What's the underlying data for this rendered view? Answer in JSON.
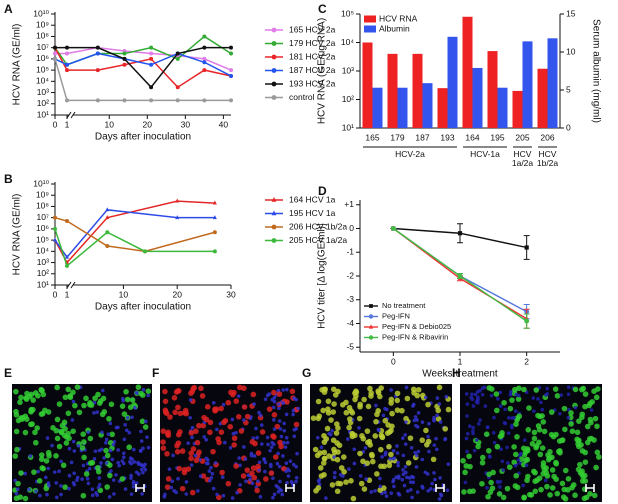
{
  "chart_data": [
    {
      "type": "line",
      "panel_label": "A",
      "y_label": "HCV RNA (GE/ml)",
      "x_label": "Days after inoculation",
      "log_y": true,
      "axis_break": true,
      "legend": "right",
      "xlim": [
        0,
        42
      ],
      "xticks": [
        0,
        1,
        10,
        20,
        30,
        40
      ],
      "ylim": [
        10,
        10000000000.0
      ],
      "yticks": [
        {
          "value": 10,
          "label": "10¹"
        },
        {
          "value": 100,
          "label": "10²"
        },
        {
          "value": 1000,
          "label": "10³"
        },
        {
          "value": 10000.0,
          "label": "10⁴"
        },
        {
          "value": 100000.0,
          "label": "10⁵"
        },
        {
          "value": 1000000.0,
          "label": "10⁶"
        },
        {
          "value": 10000000.0,
          "label": "10⁷"
        },
        {
          "value": 100000000.0,
          "label": "10⁸"
        },
        {
          "value": 1000000000.0,
          "label": "10⁹"
        },
        {
          "value": 10000000000.0,
          "label": "10¹⁰"
        }
      ],
      "x": [
        0,
        1,
        7,
        14,
        21,
        28,
        35,
        42
      ],
      "series": [
        {
          "name": "165 HCV 2a",
          "color": "#e07be8",
          "marker": "circle",
          "values": [
            3000000.0,
            3000000.0,
            10000000.0,
            5000000.0,
            3000000.0,
            2000000.0,
            1000000.0,
            100000.0
          ]
        },
        {
          "name": "179 HCV 2a",
          "color": "#33aa33",
          "marker": "circle",
          "values": [
            10000000.0,
            300000.0,
            3000000.0,
            3000000.0,
            10000000.0,
            1000000.0,
            100000000.0,
            3000000.0
          ]
        },
        {
          "name": "181 HCV 2a",
          "color": "#e8262a",
          "marker": "circle",
          "values": [
            10000000.0,
            100000.0,
            100000.0,
            300000.0,
            1000000.0,
            3000.0,
            100000.0,
            30000.0
          ]
        },
        {
          "name": "187 HCV 2a",
          "color": "#2255ee",
          "marker": "circle",
          "values": [
            1000000.0,
            300000.0,
            3000000.0,
            1000000.0,
            300000.0,
            3000000.0,
            500000.0,
            30000.0
          ]
        },
        {
          "name": "193 HCV 2a",
          "color": "#111111",
          "marker": "circle",
          "values": [
            10000000.0,
            10000000.0,
            10000000.0,
            1000000.0,
            3000.0,
            3000000.0,
            10000000.0,
            10000000.0
          ]
        },
        {
          "name": "control",
          "color": "#9a9a9a",
          "marker": "circle",
          "values": [
            1000000.0,
            200,
            200,
            200,
            200,
            200,
            200,
            200
          ]
        }
      ]
    },
    {
      "type": "line",
      "panel_label": "B",
      "y_label": "HCV RNA (GE/ml)",
      "x_label": "Days after inoculation",
      "log_y": true,
      "axis_break": true,
      "legend": "right",
      "xlim": [
        0,
        30
      ],
      "xticks": [
        0,
        1,
        10,
        20,
        30
      ],
      "ylim": [
        10,
        10000000000.0
      ],
      "yticks": [
        {
          "value": 10,
          "label": "10¹"
        },
        {
          "value": 100,
          "label": "10²"
        },
        {
          "value": 1000,
          "label": "10³"
        },
        {
          "value": 10000.0,
          "label": "10⁴"
        },
        {
          "value": 100000.0,
          "label": "10⁵"
        },
        {
          "value": 1000000.0,
          "label": "10⁶"
        },
        {
          "value": 10000000.0,
          "label": "10⁷"
        },
        {
          "value": 100000000.0,
          "label": "10⁸"
        },
        {
          "value": 1000000000.0,
          "label": "10⁹"
        },
        {
          "value": 10000000000.0,
          "label": "10¹⁰"
        }
      ],
      "series": [
        {
          "name": "164 HCV 1a",
          "color": "#e32626",
          "marker": "triangle",
          "x": [
            0,
            1,
            7,
            20,
            27
          ],
          "values": [
            100000.0,
            1000.0,
            10000000.0,
            300000000.0,
            200000000.0
          ]
        },
        {
          "name": "195 HCV 1a",
          "color": "#2e4be8",
          "marker": "triangle",
          "x": [
            0,
            1,
            7,
            20,
            27
          ],
          "values": [
            100000.0,
            3000.0,
            50000000.0,
            10000000.0,
            10000000.0
          ]
        },
        {
          "name": "206 HCV 1b/2a",
          "color": "#c06a1e",
          "marker": "circle",
          "x": [
            0,
            1,
            7,
            14,
            27
          ],
          "values": [
            10000000.0,
            5000000.0,
            30000.0,
            10000.0,
            500000.0
          ]
        },
        {
          "name": "205 HCV 1a/2a",
          "color": "#3cb83c",
          "marker": "circle",
          "x": [
            0,
            1,
            7,
            14,
            27
          ],
          "values": [
            1000000.0,
            500,
            500000.0,
            10000.0,
            10000.0
          ]
        }
      ]
    },
    {
      "type": "bar",
      "panel_label": "C",
      "y_label": "HCV RNA (GE/μg RNA)",
      "y2_label": "Serum albumin (mg/ml)",
      "log_y": true,
      "legend": "upper left",
      "ylim": [
        10,
        100000.0
      ],
      "yticks": [
        {
          "value": 10,
          "label": "10¹"
        },
        {
          "value": 100,
          "label": "10²"
        },
        {
          "value": 1000,
          "label": "10³"
        },
        {
          "value": 10000.0,
          "label": "10⁴"
        },
        {
          "value": 100000.0,
          "label": "10⁵"
        }
      ],
      "y2lim": [
        0,
        15
      ],
      "y2ticks": [
        0,
        5,
        10,
        15
      ],
      "groups": [
        {
          "name": "HCV-2a",
          "categories": [
            "165",
            "179",
            "187",
            "193"
          ]
        },
        {
          "name": "HCV-1a",
          "categories": [
            "164",
            "195"
          ]
        },
        {
          "name": "HCV 1a/2a",
          "categories": [
            "205"
          ]
        },
        {
          "name": "HCV 1b/2a",
          "categories": [
            "206"
          ]
        }
      ],
      "series": [
        {
          "name": "HCV RNA",
          "color": "#ee2222",
          "values": [
            10000.0,
            4000,
            4000,
            250,
            80000.0,
            5000,
            200,
            1200
          ]
        },
        {
          "name": "Albumin",
          "color": "#3355ee",
          "axis": "y2",
          "values": [
            5.3,
            5.3,
            5.9,
            12,
            7.9,
            5.3,
            11.4,
            11.8
          ]
        }
      ]
    },
    {
      "type": "errorline",
      "panel_label": "D",
      "y_label": "HCV titer [Δ log(GE/ml)]",
      "x_label": "Weeks treatment",
      "legend": "lower left",
      "xlim": [
        -0.5,
        2.5
      ],
      "xticks": [
        0,
        1,
        2
      ],
      "ylim": [
        -5.2,
        1.2
      ],
      "yticks": [
        {
          "value": 1,
          "label": "+1"
        },
        0,
        -1,
        -2,
        -3,
        -4,
        -5
      ],
      "x": [
        0,
        1,
        2
      ],
      "series": [
        {
          "name": "No treatment",
          "color": "#111111",
          "marker": "square",
          "values": [
            0,
            -0.2,
            -0.8
          ],
          "errors": [
            0,
            0.4,
            0.5
          ]
        },
        {
          "name": "Peg-IFN",
          "color": "#5577dd",
          "marker": "circle",
          "values": [
            0,
            -2,
            -3.5
          ],
          "errors": [
            0,
            0.1,
            0.3
          ]
        },
        {
          "name": "Peg-IFN & Debio025",
          "color": "#ee3333",
          "marker": "triangle",
          "values": [
            0,
            -2.1,
            -3.8
          ],
          "errors": [
            0,
            0.1,
            0.4
          ]
        },
        {
          "name": "Peg-IFN & Ribavirin",
          "color": "#44bb44",
          "marker": "circle",
          "values": [
            0,
            -2,
            -3.9
          ],
          "errors": [
            0,
            0.1,
            0.3
          ]
        }
      ]
    }
  ],
  "images": [
    {
      "label": "E"
    },
    {
      "label": "F"
    },
    {
      "label": "G"
    },
    {
      "label": "H"
    }
  ]
}
